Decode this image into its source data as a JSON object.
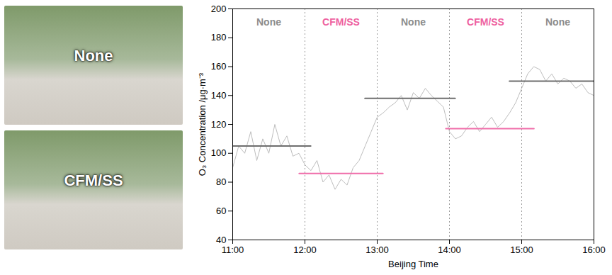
{
  "chart_data": {
    "type": "line",
    "xlabel": "Beijing Time",
    "ylabel": "O₃ Concentration /μg·m⁻³",
    "xlim": [
      11,
      16
    ],
    "xticks": [
      {
        "value": 11,
        "label": "11:00"
      },
      {
        "value": 12,
        "label": "12:00"
      },
      {
        "value": 13,
        "label": "13:00"
      },
      {
        "value": 14,
        "label": "14:00"
      },
      {
        "value": 15,
        "label": "15:00"
      },
      {
        "value": 16,
        "label": "16:00"
      }
    ],
    "ylim": [
      40,
      200
    ],
    "yticks": [
      40,
      60,
      80,
      100,
      120,
      140,
      160,
      180,
      200
    ],
    "grid": false,
    "x": [
      11.0,
      11.0833,
      11.1667,
      11.25,
      11.3333,
      11.4167,
      11.5,
      11.5833,
      11.6667,
      11.75,
      11.8333,
      11.9167,
      12.0,
      12.0833,
      12.1667,
      12.25,
      12.3333,
      12.4167,
      12.5,
      12.5833,
      12.6667,
      12.75,
      12.8333,
      12.9167,
      13.0,
      13.0833,
      13.1667,
      13.25,
      13.3333,
      13.4167,
      13.5,
      13.5833,
      13.6667,
      13.75,
      13.8333,
      13.9167,
      14.0,
      14.0833,
      14.1667,
      14.25,
      14.3333,
      14.4167,
      14.5,
      14.5833,
      14.6667,
      14.75,
      14.8333,
      14.9167,
      15.0,
      15.0833,
      15.1667,
      15.25,
      15.3333,
      15.4167,
      15.5,
      15.5833,
      15.6667,
      15.75,
      15.8333,
      15.9167,
      16.0
    ],
    "series": [
      {
        "name": "O₃",
        "color": "#bdbdbd",
        "values": [
          90,
          105,
          100,
          115,
          95,
          110,
          100,
          120,
          105,
          112,
          98,
          100,
          92,
          88,
          95,
          80,
          85,
          75,
          82,
          78,
          90,
          95,
          105,
          115,
          125,
          128,
          132,
          135,
          140,
          130,
          142,
          138,
          145,
          140,
          136,
          132,
          115,
          110,
          112,
          118,
          122,
          115,
          120,
          125,
          118,
          122,
          128,
          135,
          145,
          155,
          160,
          158,
          150,
          155,
          148,
          152,
          150,
          145,
          148,
          142,
          140
        ]
      }
    ],
    "periods": [
      {
        "label": "None",
        "start": 11,
        "end": 12,
        "color": "#8c8c8c",
        "mean": 105,
        "mean_start": 11.0,
        "mean_end": 12.08,
        "mean_color": "#6e6e6e"
      },
      {
        "label": "CFM/SS",
        "start": 12,
        "end": 13,
        "color": "#ee5fa0",
        "mean": 86,
        "mean_start": 11.92,
        "mean_end": 13.08,
        "mean_color": "#f06eaa"
      },
      {
        "label": "None",
        "start": 13,
        "end": 14,
        "color": "#8c8c8c",
        "mean": 138,
        "mean_start": 12.83,
        "mean_end": 14.08,
        "mean_color": "#6e6e6e"
      },
      {
        "label": "CFM/SS",
        "start": 14,
        "end": 15,
        "color": "#ee5fa0",
        "mean": 117,
        "mean_start": 13.95,
        "mean_end": 15.17,
        "mean_color": "#f06eaa"
      },
      {
        "label": "None",
        "start": 15,
        "end": 16,
        "color": "#8c8c8c",
        "mean": 150,
        "mean_start": 14.83,
        "mean_end": 16.0,
        "mean_color": "#6e6e6e"
      }
    ]
  },
  "photos": [
    {
      "label": "None"
    },
    {
      "label": "CFM/SS"
    }
  ]
}
